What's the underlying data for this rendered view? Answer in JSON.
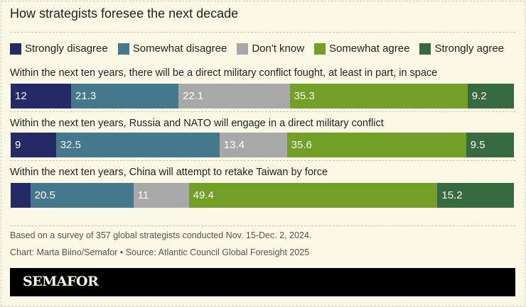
{
  "chart_data": {
    "type": "bar",
    "orientation": "horizontal-stacked-100",
    "title": "How strategists foresee the next decade",
    "legend_position": "top",
    "series": [
      {
        "name": "Strongly disagree",
        "color": "#232a66"
      },
      {
        "name": "Somewhat disagree",
        "color": "#44788c"
      },
      {
        "name": "Don't know",
        "color": "#a8a8a8"
      },
      {
        "name": "Somewhat agree",
        "color": "#72a026"
      },
      {
        "name": "Strongly agree",
        "color": "#356b3e"
      }
    ],
    "categories": [
      "Within the next ten years, there will be a direct military conflict fought, at least in part, in space",
      "Within the next ten years, Russia and NATO will engage in a direct military conflict",
      "Within the next ten years, China will attempt to retake Taiwan by force"
    ],
    "values": [
      [
        12,
        21.3,
        22.1,
        35.3,
        9.2
      ],
      [
        9,
        32.5,
        13.4,
        35.6,
        9.5
      ],
      [
        3.9,
        20.5,
        11,
        49.4,
        15.2
      ]
    ],
    "labels": [
      [
        "12",
        "21.3",
        "22.1",
        "35.3",
        "9.2"
      ],
      [
        "9",
        "32.5",
        "13.4",
        "35.6",
        "9.5"
      ],
      [
        "",
        "20.5",
        "11",
        "49.4",
        "15.2"
      ]
    ]
  },
  "notes": {
    "survey": "Based on a survey of 357 global strategists conducted Nov. 15-Dec. 2, 2024.",
    "credit": "Chart: Marta Biino/Semafor • Source: Atlantic Council Global Foresight 2025"
  },
  "logo": "SEMAFOR"
}
